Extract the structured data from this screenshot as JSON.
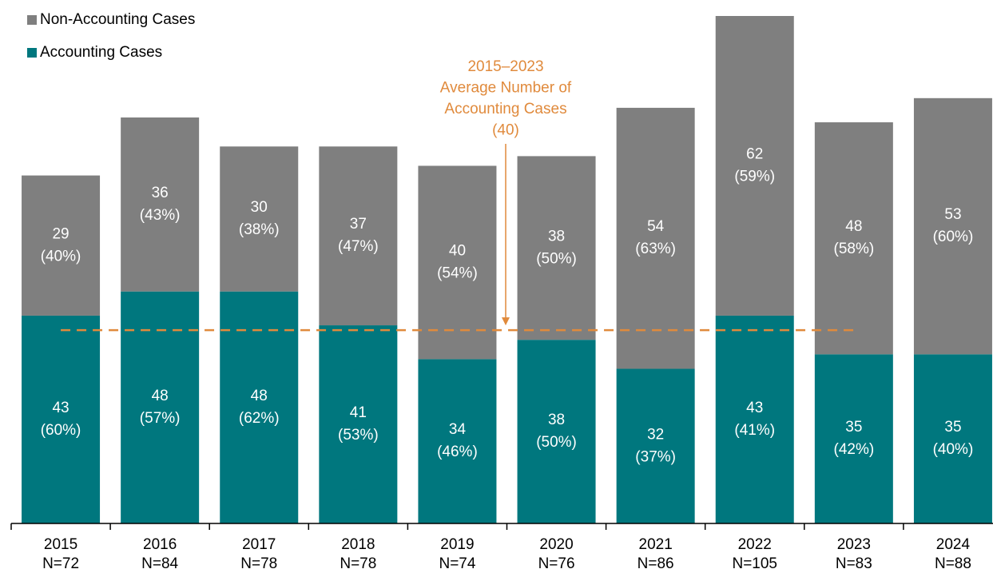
{
  "chart_data": {
    "type": "stacked_bar",
    "categories": [
      "2015",
      "2016",
      "2017",
      "2018",
      "2019",
      "2020",
      "2021",
      "2022",
      "2023",
      "2024"
    ],
    "category_sublabels": [
      "N=72",
      "N=84",
      "N=78",
      "N=78",
      "N=74",
      "N=76",
      "N=86",
      "N=105",
      "N=83",
      "N=88"
    ],
    "series": [
      {
        "name": "Accounting Cases",
        "color": "#00777e",
        "values": [
          43,
          48,
          48,
          41,
          34,
          38,
          32,
          43,
          35,
          35
        ],
        "percent_labels": [
          "(60%)",
          "(57%)",
          "(62%)",
          "(53%)",
          "(46%)",
          "(50%)",
          "(37%)",
          "(41%)",
          "(42%)",
          "(40%)"
        ]
      },
      {
        "name": "Non-Accounting Cases",
        "color": "#7f7f7f",
        "values": [
          29,
          36,
          30,
          37,
          40,
          38,
          54,
          62,
          48,
          53
        ],
        "percent_labels": [
          "(40%)",
          "(43%)",
          "(38%)",
          "(47%)",
          "(54%)",
          "(50%)",
          "(63%)",
          "(59%)",
          "(58%)",
          "(60%)"
        ]
      }
    ],
    "ylim": [
      0,
      105
    ],
    "reference_line": {
      "value": 40,
      "color": "#e08a3c"
    },
    "annotation": [
      "2015–2023",
      "Average Number of",
      "Accounting Cases",
      "(40)"
    ]
  }
}
